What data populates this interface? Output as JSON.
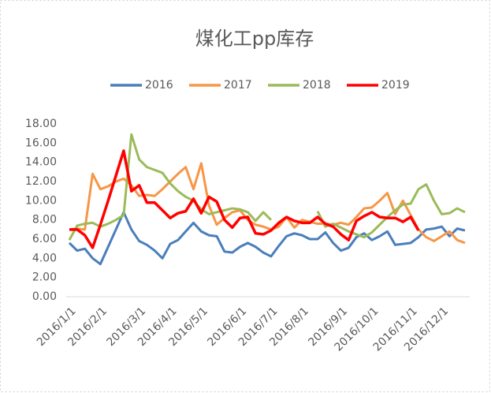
{
  "chart_data": {
    "type": "line",
    "title": "煤化工pp库存",
    "categories": [
      "2016/1/1",
      null,
      null,
      null,
      "2016/2/1",
      null,
      null,
      null,
      null,
      "2016/3/1",
      null,
      null,
      null,
      "2016/4/1",
      null,
      null,
      null,
      "2016/5/1",
      null,
      null,
      null,
      null,
      "2016/6/1",
      null,
      null,
      null,
      "2016/7/1",
      null,
      null,
      null,
      "2016/8/1",
      null,
      null,
      null,
      null,
      "2016/9/1",
      null,
      null,
      null,
      "2016/10/1",
      null,
      null,
      null,
      null,
      "2016/11/1",
      null,
      null,
      null,
      "2016/12/1",
      null,
      null,
      null
    ],
    "ylim": [
      0,
      18
    ],
    "yticks": [
      {
        "value": 0,
        "label": "0.00"
      },
      {
        "value": 2,
        "label": "2.00"
      },
      {
        "value": 4,
        "label": "4.00"
      },
      {
        "value": 6,
        "label": "6.00"
      },
      {
        "value": 8,
        "label": "8.00"
      },
      {
        "value": 10,
        "label": "10.00"
      },
      {
        "value": 12,
        "label": "12.00"
      },
      {
        "value": 14,
        "label": "14.00"
      },
      {
        "value": 16,
        "label": "16.00"
      },
      {
        "value": 18,
        "label": "18.00"
      }
    ],
    "legend": "top",
    "series": [
      {
        "name": "2016",
        "color": "#4a7ebb",
        "values": [
          5.6,
          4.8,
          5.0,
          4.0,
          3.4,
          5.2,
          7.0,
          8.8,
          7.0,
          5.8,
          5.4,
          4.8,
          4.0,
          5.5,
          5.9,
          6.8,
          7.7,
          6.8,
          6.4,
          6.3,
          4.7,
          4.6,
          5.2,
          5.6,
          5.2,
          4.6,
          4.2,
          5.3,
          6.3,
          6.6,
          6.4,
          6.0,
          6.0,
          6.7,
          5.6,
          4.8,
          5.1,
          6.2,
          6.6,
          5.9,
          6.3,
          6.8,
          5.4,
          5.5,
          5.6,
          6.2,
          7.0,
          7.1,
          7.3,
          6.3,
          7.1,
          6.9
        ]
      },
      {
        "name": "2017",
        "color": "#f79646",
        "values": [
          7.0,
          7.1,
          7.0,
          12.8,
          11.2,
          11.5,
          12.0,
          12.3,
          11.6,
          10.5,
          10.6,
          10.5,
          11.2,
          12.0,
          12.8,
          13.5,
          11.2,
          13.9,
          9.5,
          7.5,
          8.2,
          8.8,
          9.0,
          8.0,
          7.5,
          7.3,
          7.0,
          7.3,
          8.3,
          7.2,
          8.0,
          7.8,
          7.6,
          7.6,
          7.5,
          7.7,
          7.5,
          8.3,
          9.2,
          9.3,
          10.0,
          10.8,
          8.6,
          10.0,
          8.5,
          7.0,
          6.2,
          5.8,
          6.3,
          6.8,
          5.9,
          5.6
        ]
      },
      {
        "name": "2018",
        "color": "#9bbb59",
        "values": [
          5.9,
          7.4,
          7.6,
          7.7,
          7.3,
          7.6,
          8.0,
          8.5,
          16.9,
          14.3,
          13.5,
          13.2,
          12.9,
          11.8,
          11.0,
          10.4,
          10.0,
          9.1,
          8.6,
          8.8,
          9.0,
          9.2,
          9.1,
          8.8,
          7.9,
          8.8,
          8.0,
          null,
          null,
          null,
          null,
          null,
          8.9,
          7.3,
          7.6,
          7.2,
          6.8,
          6.5,
          6.2,
          6.7,
          7.5,
          8.3,
          9.0,
          9.6,
          9.7,
          11.2,
          11.7,
          10.0,
          8.6,
          8.7,
          9.2,
          8.8
        ]
      },
      {
        "name": "2019",
        "color": "#ff0000",
        "values": [
          7.0,
          7.0,
          6.4,
          5.1,
          7.5,
          10.0,
          12.6,
          15.2,
          11.0,
          11.6,
          9.8,
          9.8,
          9.0,
          8.2,
          8.7,
          8.9,
          10.2,
          8.7,
          10.4,
          9.9,
          8.0,
          7.2,
          8.2,
          8.3,
          6.6,
          6.5,
          6.9,
          7.7,
          8.3,
          7.9,
          7.7,
          7.7,
          8.3,
          7.6,
          7.3,
          6.5,
          5.9,
          7.9,
          8.4,
          8.8,
          8.3,
          8.2,
          8.2,
          7.8,
          8.3,
          6.9,
          null,
          null,
          null,
          null,
          null,
          null
        ]
      }
    ]
  }
}
